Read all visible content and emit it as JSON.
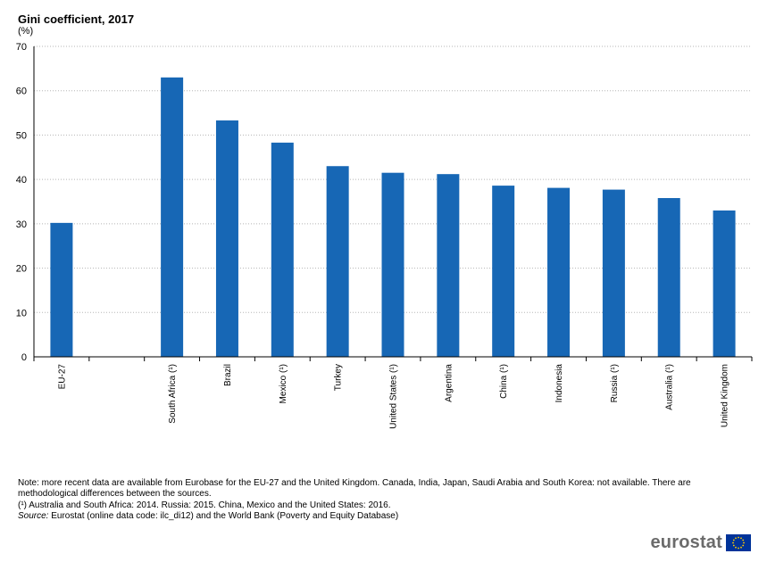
{
  "title": "Gini coefficient, 2017",
  "unit": "(%)",
  "chart_data": {
    "type": "bar",
    "title": "Gini coefficient, 2017",
    "ylabel": "(%)",
    "xlabel": "",
    "ylim": [
      0,
      70
    ],
    "yticks": [
      0,
      10,
      20,
      30,
      40,
      50,
      60,
      70
    ],
    "grid": true,
    "bar_color": "#1767b5",
    "categories": [
      "EU-27",
      "",
      "South Africa (¹)",
      "Brazil",
      "Mexico (¹)",
      "Turkey",
      "United States (¹)",
      "Argentina",
      "China (¹)",
      "Indonesia",
      "Russia (¹)",
      "Australia (¹)",
      "United Kingdom"
    ],
    "values": [
      30.2,
      null,
      63.0,
      53.3,
      48.3,
      43.0,
      41.5,
      41.2,
      38.6,
      38.1,
      37.7,
      35.8,
      33.0
    ]
  },
  "notes": {
    "line1": "Note: more recent data are available from Eurobase for the EU-27 and the United Kingdom. Canada, India, Japan, Saudi Arabia and South Korea: not available. There are",
    "line2": "methodological differences between the sources.",
    "line3": "(¹) Australia and South Africa: 2014. Russia: 2015. China, Mexico and the United States: 2016.",
    "source_label": "Source:",
    "source_text": " Eurostat (online data code: ilc_di12) and the World Bank (Poverty and Equity Database)"
  },
  "logo": {
    "text": "eurostat",
    "flag_color": "#003399",
    "star_color": "#ffcc00"
  }
}
